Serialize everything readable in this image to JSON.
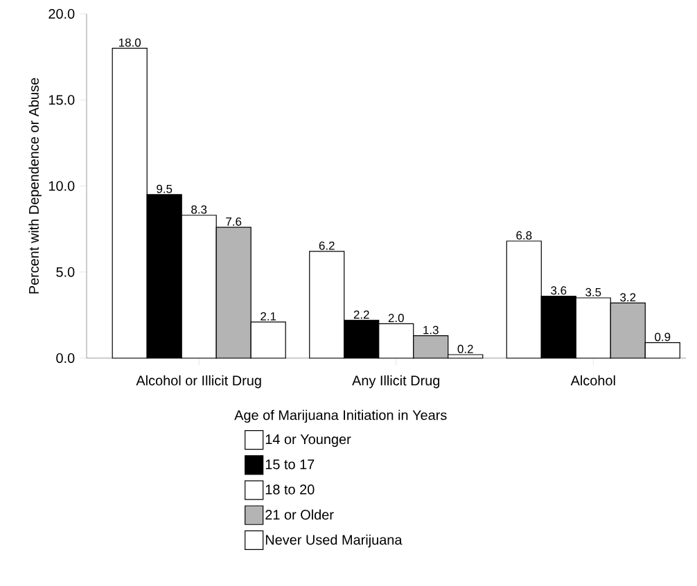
{
  "chart_data": {
    "type": "bar",
    "ylabel": "Percent with Dependence or Abuse",
    "legend_title": "Age of Marijuana Initiation in Years",
    "categories": [
      "Alcohol or Illicit Drug",
      "Any Illicit Drug",
      "Alcohol"
    ],
    "series": [
      {
        "name": "14 or Younger",
        "color": "#ffffff",
        "values": [
          18.0,
          6.2,
          6.8
        ],
        "value_labels": [
          "18.0",
          "6.2",
          "6.8"
        ]
      },
      {
        "name": "15 to 17",
        "color": "#000000",
        "values": [
          9.5,
          2.2,
          3.6
        ],
        "value_labels": [
          "9.5",
          "2.2",
          "3.6"
        ]
      },
      {
        "name": "18 to 20",
        "color": "#ffffff",
        "values": [
          8.3,
          2.0,
          3.5
        ],
        "value_labels": [
          "8.3",
          "2.0",
          "3.5"
        ]
      },
      {
        "name": "21 or Older",
        "color": "#b4b4b4",
        "values": [
          7.6,
          1.3,
          3.2
        ],
        "value_labels": [
          "7.6",
          "1.3",
          "3.2"
        ]
      },
      {
        "name": "Never Used Marijuana",
        "color": "#ffffff",
        "values": [
          2.1,
          0.2,
          0.9
        ],
        "value_labels": [
          "2.1",
          "0.2",
          "0.9"
        ]
      }
    ],
    "ylim": [
      0,
      20
    ],
    "yticks": [
      {
        "value": 0,
        "label": "0.0"
      },
      {
        "value": 5,
        "label": "5.0"
      },
      {
        "value": 10,
        "label": "10.0"
      },
      {
        "value": 15,
        "label": "15.0"
      },
      {
        "value": 20,
        "label": "20.0"
      }
    ],
    "legend": "bottom"
  }
}
